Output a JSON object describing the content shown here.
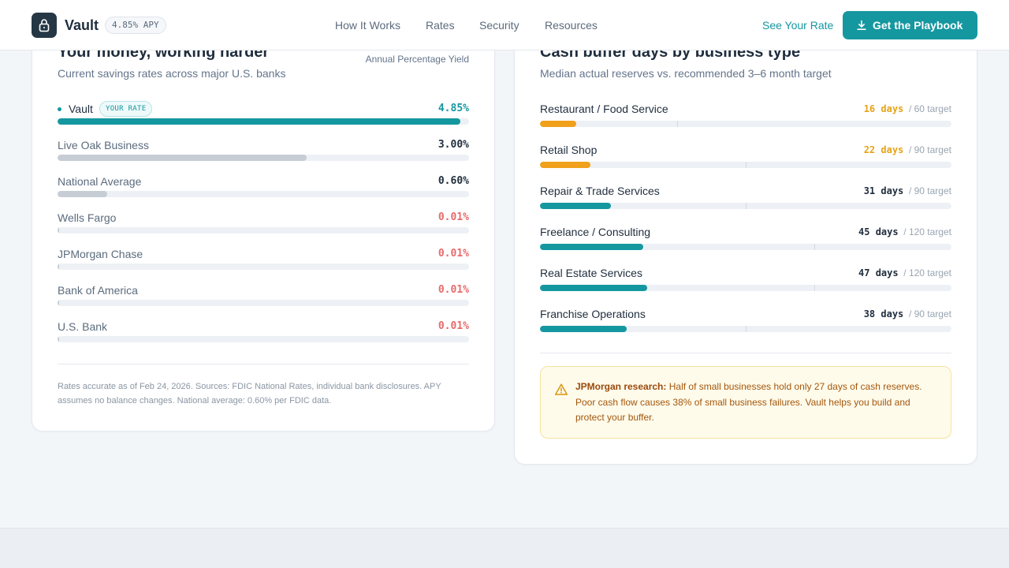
{
  "brand": {
    "name": "Vault",
    "apy_badge": "4.85% APY"
  },
  "nav": {
    "links": [
      "How It Works",
      "Rates",
      "Security",
      "Resources"
    ],
    "see_rate": "See Your Rate",
    "cta": "Get the Playbook",
    "cta_icon": "download-icon",
    "logo_icon": "lock-icon"
  },
  "rates_card": {
    "title": "Your money, working harder",
    "subtitle": "Current savings rates across major U.S. banks",
    "caption": "Annual Percentage Yield",
    "your_rate_badge": "YOUR RATE",
    "banks": [
      {
        "name": "Vault",
        "value": "4.85%",
        "apy": 4.85
      },
      {
        "name": "Live Oak Business",
        "value": "3.00%",
        "apy": 3.0
      },
      {
        "name": "National Average",
        "value": "0.60%",
        "apy": 0.6
      },
      {
        "name": "Wells Fargo",
        "value": "0.01%",
        "apy": 0.01
      },
      {
        "name": "JPMorgan Chase",
        "value": "0.01%",
        "apy": 0.01
      },
      {
        "name": "Bank of America",
        "value": "0.01%",
        "apy": 0.01
      },
      {
        "name": "U.S. Bank",
        "value": "0.01%",
        "apy": 0.01
      }
    ],
    "footnote": "Rates accurate as of Feb 24, 2026. Sources: FDIC National Rates, individual bank disclosures. APY assumes no balance changes. National average: 0.60% per FDIC data."
  },
  "buffer_card": {
    "title": "Cash buffer days by business type",
    "subtitle": "Median actual reserves vs. recommended 3–6 month target",
    "scale_max_days": 180,
    "rows": [
      {
        "name": "Restaurant / Food Service",
        "days": 16,
        "days_label": "16 days",
        "target": 60,
        "target_label": "/ 60 target",
        "below": true
      },
      {
        "name": "Retail Shop",
        "days": 22,
        "days_label": "22 days",
        "target": 90,
        "target_label": "/ 90 target",
        "below": true
      },
      {
        "name": "Repair & Trade Services",
        "days": 31,
        "days_label": "31 days",
        "target": 90,
        "target_label": "/ 90 target",
        "below": false
      },
      {
        "name": "Freelance / Consulting",
        "days": 45,
        "days_label": "45 days",
        "target": 120,
        "target_label": "/ 120 target",
        "below": false
      },
      {
        "name": "Real Estate Services",
        "days": 47,
        "days_label": "47 days",
        "target": 120,
        "target_label": "/ 120 target",
        "below": false
      },
      {
        "name": "Franchise Operations",
        "days": 38,
        "days_label": "38 days",
        "target": 90,
        "target_label": "/ 90 target",
        "below": false
      }
    ],
    "alert": {
      "icon": "warning-icon",
      "lead": "JPMorgan research:",
      "body": " Half of small businesses hold only 27 days of cash reserves. Poor cash flow causes 38% of small business failures. Vault helps you build and protect your buffer."
    }
  },
  "colors": {
    "accent": "#1597a0",
    "muted_bar": "#c7cdd5",
    "warning": "#f0a01b",
    "low_rate": "#e86a6a"
  }
}
